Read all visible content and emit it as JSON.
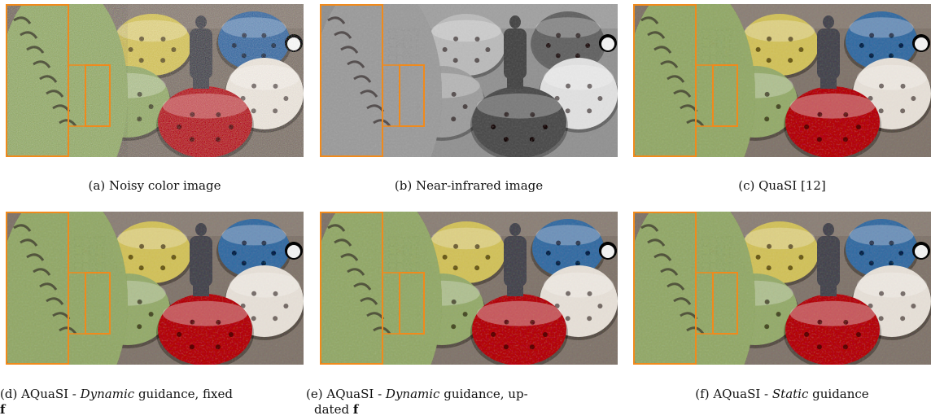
{
  "figure": {
    "panels": [
      {
        "id": "a",
        "caption_label": "(a)",
        "caption_text": "Noisy color image",
        "tone": "color-noisy"
      },
      {
        "id": "b",
        "caption_label": "(b)",
        "caption_text": "Near-infrared image",
        "tone": "grayscale"
      },
      {
        "id": "c",
        "caption_label": "(c)",
        "caption_text": "QuaSI [12]",
        "tone": "color-smooth"
      },
      {
        "id": "d",
        "caption_label": "(d)",
        "caption_pre": "AQuaSI - ",
        "caption_italic": "Dynamic",
        "caption_post": " guidance, fixed",
        "caption_line2": "f",
        "tone": "color-smooth"
      },
      {
        "id": "e",
        "caption_label": "(e)",
        "caption_pre": "AQuaSI - ",
        "caption_italic": "Dynamic",
        "caption_post": " guidance, up-",
        "caption_line2_pre": "dated ",
        "caption_line2_bold": "f",
        "tone": "color-smooth"
      },
      {
        "id": "f",
        "caption_label": "(f)",
        "caption_pre": "AQuaSI - ",
        "caption_italic": "Static",
        "caption_post": " guidance",
        "tone": "color-smooth"
      }
    ],
    "colors": {
      "inset_border": "#f08a1c",
      "floor": "#8a8078",
      "bowl_yellow": "#d4c56a",
      "bowl_blue": "#4f78a8",
      "bowl_green": "#9cb078",
      "bowl_white": "#e8e2da",
      "bowl_red": "#b8383c",
      "statue": "#5a5a60",
      "checker_bg": "#2a2a2e"
    }
  }
}
